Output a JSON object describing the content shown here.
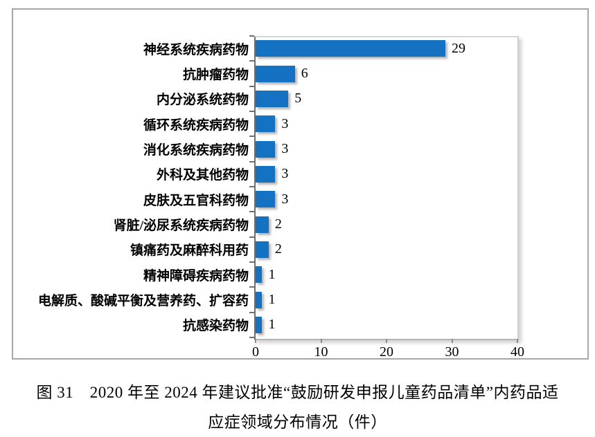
{
  "chart_data": {
    "type": "bar",
    "orientation": "horizontal",
    "title": "",
    "xlabel": "",
    "ylabel": "",
    "categories": [
      "神经系统疾病药物",
      "抗肿瘤药物",
      "内分泌系统药物",
      "循环系统疾病药物",
      "消化系统疾病药物",
      "外科及其他药物",
      "皮肤及五官科药物",
      "肾脏/泌尿系统疾病药物",
      "镇痛药及麻醉科用药",
      "精神障碍疾病药物",
      "电解质、酸碱平衡及营养药、扩容药",
      "抗感染药物"
    ],
    "values": [
      29,
      6,
      5,
      3,
      3,
      3,
      3,
      2,
      2,
      1,
      1,
      1
    ],
    "data_labels": [
      "29",
      "6",
      "5",
      "3",
      "3",
      "3",
      "3",
      "2",
      "2",
      "1",
      "1",
      "1"
    ],
    "xlim": [
      0,
      40
    ],
    "xticks": [
      0,
      10,
      20,
      30,
      40
    ],
    "xtick_labels": [
      "0",
      "10",
      "20",
      "30",
      "40"
    ],
    "grid": false,
    "legend": null,
    "bar_color": "#1572c2"
  },
  "caption": {
    "line1": "图 31　2020 年至 2024 年建议批准“鼓励研发申报儿童药品清单”内药品适",
    "line2": "应症领域分布情况（件）"
  }
}
